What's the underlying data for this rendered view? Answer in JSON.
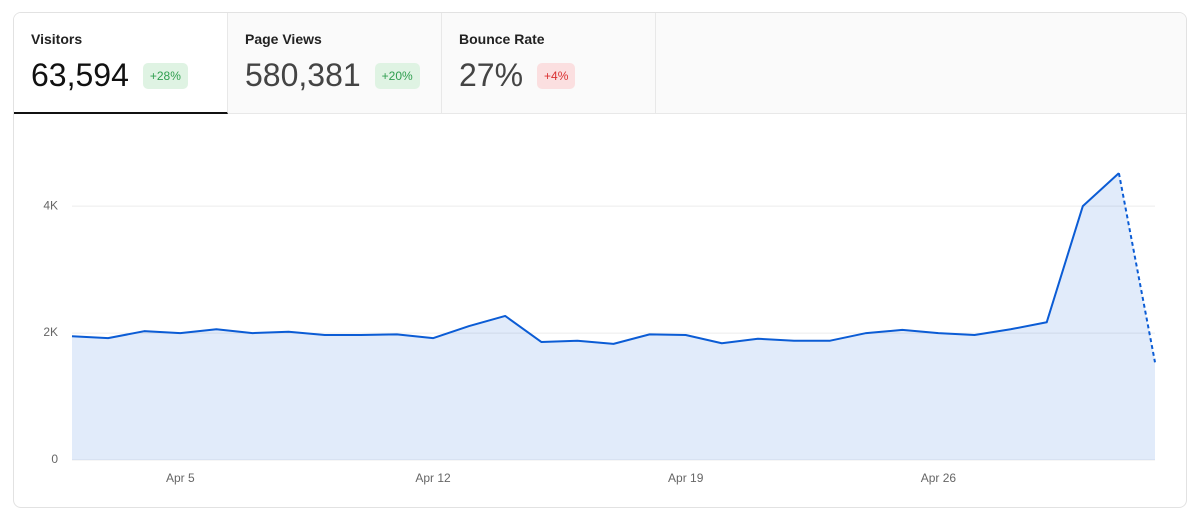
{
  "tabs": [
    {
      "label": "Visitors",
      "value": "63,594",
      "change": "+28%"
    },
    {
      "label": "Page Views",
      "value": "580,381",
      "change": "+20%"
    },
    {
      "label": "Bounce Rate",
      "value": "27%",
      "change": "+4%"
    }
  ],
  "chart_data": {
    "type": "line",
    "categories": [
      null,
      null,
      null,
      "Apr 5",
      null,
      null,
      null,
      null,
      null,
      null,
      "Apr 12",
      null,
      null,
      null,
      null,
      null,
      null,
      "Apr 19",
      null,
      null,
      null,
      null,
      null,
      null,
      "Apr 26",
      null,
      null,
      null,
      null,
      null,
      null
    ],
    "values": [
      1950,
      1920,
      2030,
      2000,
      2060,
      2000,
      2020,
      1970,
      1970,
      1980,
      1920,
      2110,
      2270,
      1860,
      1880,
      1830,
      1980,
      1970,
      1840,
      1910,
      1880,
      1880,
      2000,
      2050,
      2000,
      1970,
      2060,
      2170,
      4000,
      4520,
      1540
    ],
    "color": "#0b5cd5",
    "ylim": [
      0,
      5200
    ],
    "yticks": [
      0,
      {
        "value": 2000,
        "label": "2K"
      },
      {
        "value": 4000,
        "label": "4K"
      }
    ],
    "grid": true,
    "dashed_last_segment": true
  }
}
